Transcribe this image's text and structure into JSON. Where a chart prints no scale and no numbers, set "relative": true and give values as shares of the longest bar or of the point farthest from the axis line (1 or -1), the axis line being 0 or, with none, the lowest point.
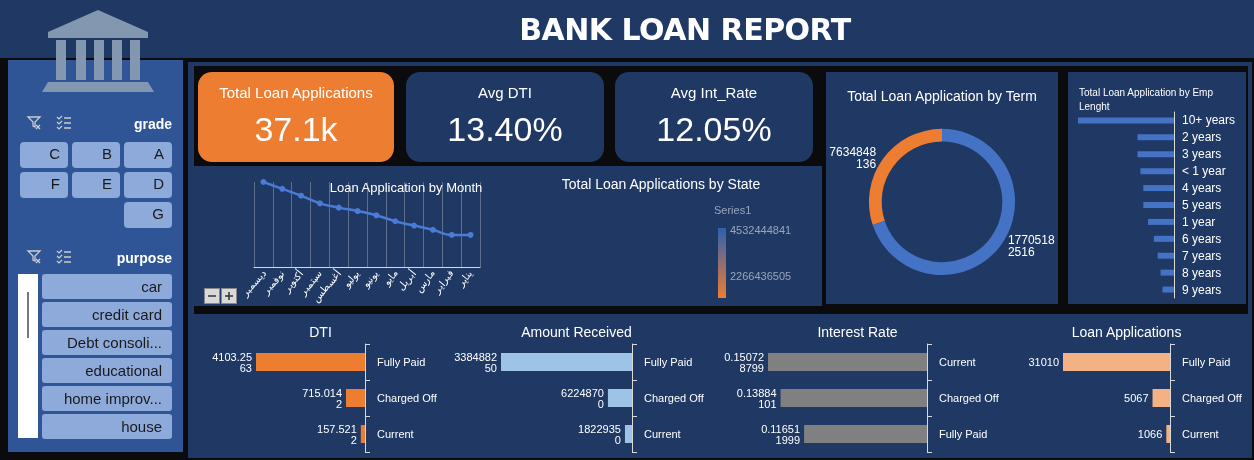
{
  "chart_data": [
    {
      "type": "other",
      "title": "BANK LOAN REPORT"
    },
    {
      "type": "other",
      "title": "grade",
      "annotations": [
        "C",
        "B",
        "A",
        "F",
        "E",
        "D",
        "G"
      ]
    },
    {
      "type": "other",
      "title": "purpose",
      "annotations": [
        "car",
        "credit card",
        "Debt consoli...",
        "educational",
        "home improv...",
        "house"
      ]
    },
    {
      "type": "other",
      "title": "Total Loan Applications",
      "annotations": [
        "37.1k"
      ]
    },
    {
      "type": "other",
      "title": "Avg DTI",
      "annotations": [
        "13.40%"
      ]
    },
    {
      "type": "other",
      "title": "Avg Int_Rate",
      "annotations": [
        "12.05%"
      ]
    },
    {
      "type": "donut",
      "title": "Total Loan Application by Term",
      "categories": [
        null,
        null
      ],
      "values": [
        7634848136,
        17705182516
      ],
      "colors": [
        "#ed7d31",
        "#4472c4"
      ],
      "data_labels": true
    },
    {
      "type": "bar",
      "orientation": "horizontal",
      "relative": true,
      "title": "Total Loan Application by Emp Lenght",
      "categories": [
        "10+ years",
        "2 years",
        "3 years",
        "< 1 year",
        "4 years",
        "5 years",
        "1 year",
        "6 years",
        "7 years",
        "8 years",
        "9 years"
      ],
      "values": [
        1,
        0.38,
        0.38,
        0.35,
        0.32,
        0.32,
        0.27,
        0.21,
        0.17,
        0.14,
        0.12
      ],
      "color": "#4472c4"
    },
    {
      "type": "line",
      "relative": true,
      "title": "Loan Application by Month",
      "categories": [
        "ديسمبر",
        "نوفمبر",
        "أكتوبر",
        "سبتمبر",
        "أغسطس",
        "يوليو",
        "يونيو",
        "مايو",
        "أبريل",
        "مارس",
        "فبراير",
        "يناير"
      ],
      "values": [
        1,
        0.92,
        0.84,
        0.75,
        0.7,
        0.66,
        0.61,
        0.54,
        0.49,
        0.44,
        0.38,
        0.38
      ],
      "color": "#4a7bd6",
      "marker": "circle",
      "grid": "x"
    },
    {
      "type": "other",
      "title": "Total Loan Applications by State",
      "annotations": [
        "Series1",
        "4532444841",
        "2266436505"
      ]
    },
    {
      "type": "bar",
      "orientation": "horizontal",
      "title": "DTI",
      "categories": [
        "Fully Paid",
        "Charged Off",
        "Current"
      ],
      "values": [
        4103.2563,
        715.0142,
        157.5212
      ],
      "color": "#ed7d31",
      "data_labels": true
    },
    {
      "type": "bar",
      "orientation": "horizontal",
      "title": "Amount Received",
      "categories": [
        "Fully Paid",
        "Charged Off",
        "Current"
      ],
      "values": [
        338488250,
        62248700,
        18229350
      ],
      "color": "#9dc3e6",
      "data_labels": true
    },
    {
      "type": "bar",
      "orientation": "horizontal",
      "title": "Interest Rate",
      "categories": [
        "Current",
        "Charged Off",
        "Fully Paid"
      ],
      "values": [
        0.150728799,
        0.13884101,
        0.116511999
      ],
      "color": "#808080",
      "data_labels": true
    },
    {
      "type": "bar",
      "orientation": "horizontal",
      "title": "Loan Applications",
      "categories": [
        "Fully Paid",
        "Charged Off",
        "Current"
      ],
      "values": [
        31010,
        5067,
        1066
      ],
      "color": "#f4b183",
      "data_labels": true
    }
  ]
}
